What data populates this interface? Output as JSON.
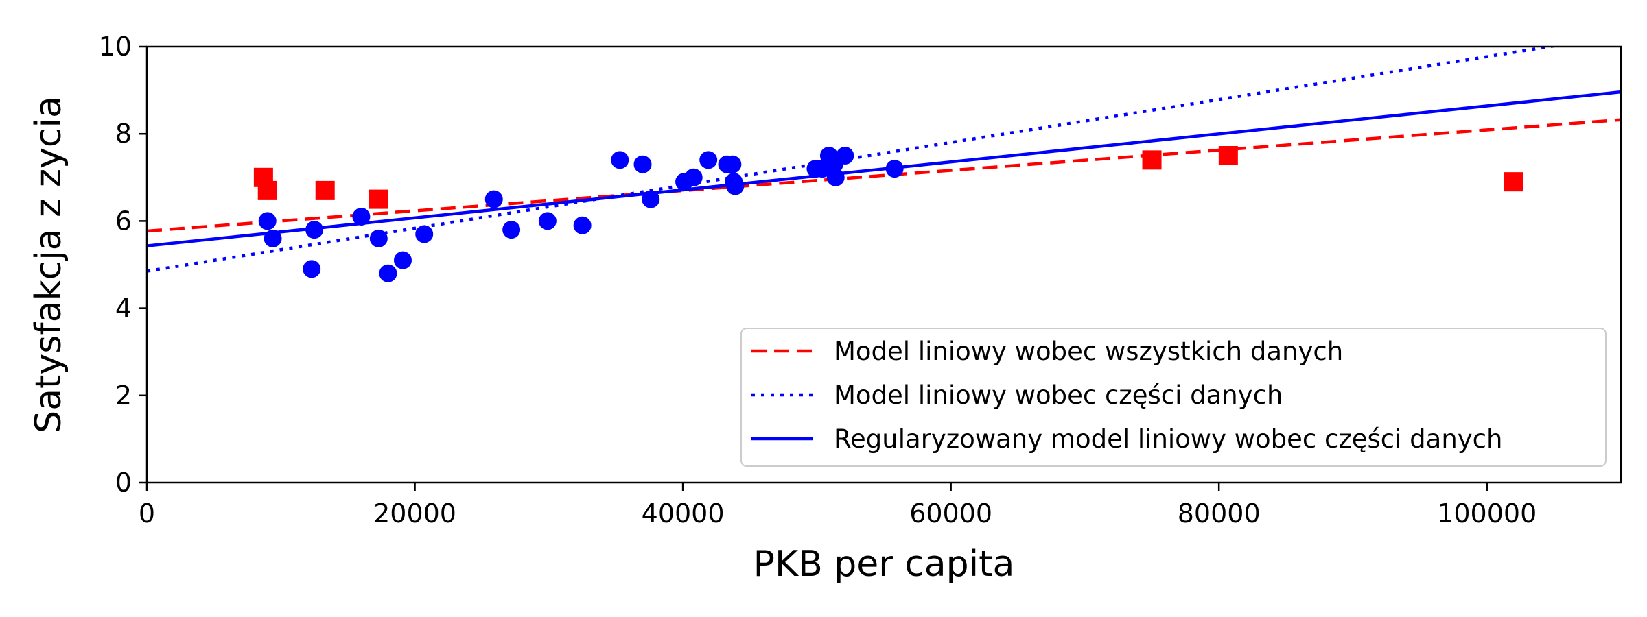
{
  "chart_data": {
    "type": "scatter",
    "xlabel": "PKB per capita",
    "ylabel": "Satysfakcja z zycia",
    "xlim": [
      0,
      110000
    ],
    "ylim": [
      0,
      10
    ],
    "xticks": [
      0,
      20000,
      40000,
      60000,
      80000,
      100000
    ],
    "yticks": [
      0,
      2,
      4,
      6,
      8,
      10
    ],
    "grid": false,
    "legend_position": "bottom-right",
    "series": [
      {
        "kind": "points",
        "marker": "circle",
        "color": "#0000ff",
        "points": [
          [
            9000,
            6.0
          ],
          [
            9400,
            5.6
          ],
          [
            12300,
            4.9
          ],
          [
            12500,
            5.8
          ],
          [
            16000,
            6.1
          ],
          [
            17300,
            5.6
          ],
          [
            18000,
            4.8
          ],
          [
            19100,
            5.1
          ],
          [
            20700,
            5.7
          ],
          [
            25900,
            6.5
          ],
          [
            27200,
            5.8
          ],
          [
            29900,
            6.0
          ],
          [
            32500,
            5.9
          ],
          [
            35300,
            7.4
          ],
          [
            37000,
            7.3
          ],
          [
            37600,
            6.5
          ],
          [
            40100,
            6.9
          ],
          [
            40800,
            7.0
          ],
          [
            41900,
            7.4
          ],
          [
            43300,
            7.3
          ],
          [
            43700,
            7.3
          ],
          [
            43800,
            6.9
          ],
          [
            43900,
            6.8
          ],
          [
            49900,
            7.2
          ],
          [
            50400,
            7.2
          ],
          [
            50900,
            7.5
          ],
          [
            51300,
            7.3
          ],
          [
            51400,
            7.0
          ],
          [
            52100,
            7.5
          ],
          [
            55800,
            7.2
          ]
        ]
      },
      {
        "kind": "points",
        "marker": "square",
        "color": "#ff0000",
        "points": [
          [
            8700,
            7.0
          ],
          [
            9000,
            6.7
          ],
          [
            13300,
            6.7
          ],
          [
            17300,
            6.5
          ],
          [
            75000,
            7.4
          ],
          [
            80700,
            7.5
          ],
          [
            102000,
            6.9
          ]
        ]
      },
      {
        "kind": "line",
        "name": "Model liniowy wobec wszystkich danych",
        "style": "dashed",
        "color": "#ff0000",
        "intercept": 5.77,
        "slope": 2.32e-05
      },
      {
        "kind": "line",
        "name": "Model liniowy wobec części danych",
        "style": "dotted",
        "color": "#0000ff",
        "intercept": 4.85,
        "slope": 4.92e-05
      },
      {
        "kind": "line",
        "name": "Regularyzowany model liniowy wobec części danych",
        "style": "solid",
        "color": "#0000ff",
        "intercept": 5.43,
        "slope": 3.21e-05
      }
    ]
  }
}
